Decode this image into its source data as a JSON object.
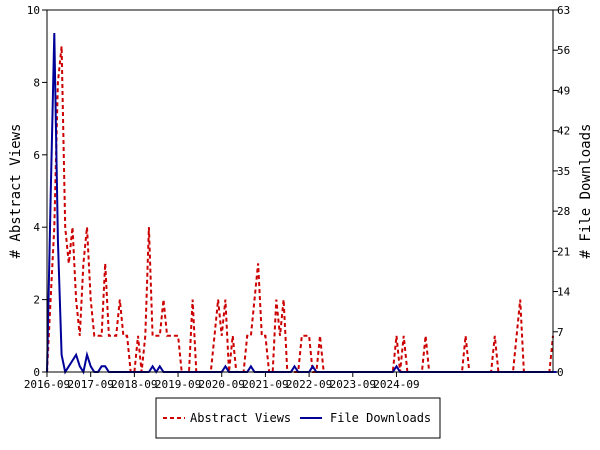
{
  "chart_data": {
    "type": "line",
    "x_tick_labels": [
      "2016-09",
      "2017-09",
      "2018-09",
      "2019-09",
      "2020-09",
      "2021-09",
      "2022-09",
      "2023-09",
      "2024-09"
    ],
    "left_axis": {
      "label": "# Abstract Views",
      "ylim": [
        0,
        10
      ],
      "ticks": [
        0,
        2,
        4,
        6,
        8,
        10
      ]
    },
    "right_axis": {
      "label": "# File Downloads",
      "ylim": [
        0,
        63
      ],
      "ticks": [
        0,
        7,
        14,
        21,
        28,
        35,
        42,
        49,
        56,
        63
      ]
    },
    "series": [
      {
        "name": "Abstract Views",
        "axis": "left",
        "color": "#cc0000",
        "style": "dashed",
        "values": [
          0,
          2,
          4,
          8,
          9,
          4,
          3,
          4,
          2,
          1,
          3,
          4,
          2,
          1,
          1,
          1,
          3,
          1,
          1,
          1,
          2,
          1,
          1,
          0,
          0,
          1,
          0,
          1,
          4,
          1,
          1,
          1,
          2,
          1,
          1,
          1,
          1,
          0,
          0,
          0,
          2,
          0,
          0,
          0,
          0,
          0,
          1,
          2,
          1,
          2,
          0,
          1,
          0,
          0,
          0,
          1,
          1,
          2,
          3,
          1,
          1,
          0,
          0,
          2,
          1,
          2,
          0,
          0,
          0,
          0,
          1,
          1,
          1,
          0,
          0,
          1,
          0,
          0,
          0,
          0,
          0,
          0,
          0,
          0,
          0,
          0,
          0,
          0,
          0,
          0,
          0,
          0,
          0,
          0,
          0,
          0,
          1,
          0,
          1,
          0,
          0,
          0,
          0,
          0,
          1,
          0,
          0,
          0,
          0,
          0,
          0,
          0,
          0,
          0,
          0,
          1,
          0,
          0,
          0,
          0,
          0,
          0,
          0,
          1,
          0,
          0,
          0,
          0,
          0,
          1,
          2,
          0,
          0,
          0,
          0,
          0,
          0,
          0,
          0,
          1
        ]
      },
      {
        "name": "File Downloads",
        "axis": "right",
        "color": "#000099",
        "style": "solid",
        "values": [
          0,
          30,
          59,
          23,
          3,
          0,
          1,
          2,
          3,
          1,
          0,
          3,
          1,
          0,
          0,
          1,
          1,
          0,
          0,
          0,
          0,
          0,
          0,
          0,
          0,
          0,
          0,
          0,
          0,
          1,
          0,
          1,
          0,
          0,
          0,
          0,
          0,
          0,
          0,
          0,
          0,
          0,
          0,
          0,
          0,
          0,
          0,
          0,
          0,
          1,
          0,
          0,
          0,
          0,
          0,
          0,
          1,
          0,
          0,
          0,
          0,
          0,
          0,
          0,
          0,
          0,
          0,
          0,
          1,
          0,
          0,
          0,
          0,
          1,
          0,
          0,
          0,
          0,
          0,
          0,
          0,
          0,
          0,
          0,
          0,
          0,
          0,
          0,
          0,
          0,
          0,
          0,
          0,
          0,
          0,
          0,
          1,
          0,
          0,
          0,
          0,
          0,
          0,
          0,
          0,
          0,
          0,
          0,
          0,
          0,
          0,
          0,
          0,
          0,
          0,
          0,
          0,
          0,
          0,
          0,
          0,
          0,
          0,
          0,
          0,
          0,
          0,
          0,
          0,
          0,
          0,
          0,
          0,
          0,
          0,
          0,
          0,
          0,
          0,
          0,
          0
        ]
      }
    ],
    "legend": {
      "placement": "bottom",
      "entries": [
        "Abstract Views",
        "File Downloads"
      ]
    },
    "grid": false
  }
}
